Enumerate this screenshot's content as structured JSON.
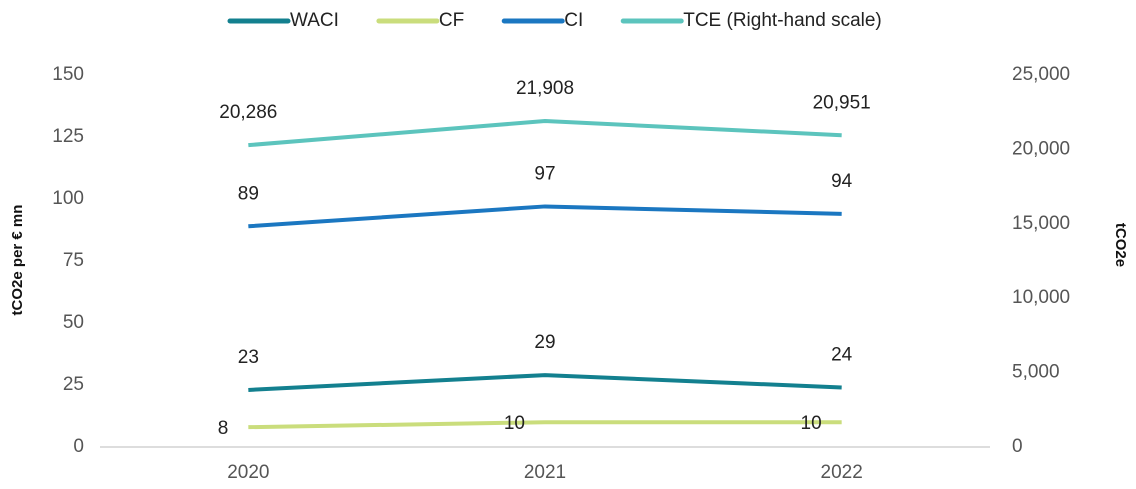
{
  "chart_data": {
    "type": "line",
    "categories": [
      "2020",
      "2021",
      "2022"
    ],
    "series": [
      {
        "name": "WACI",
        "color": "#13808f",
        "values": [
          23,
          29,
          24
        ]
      },
      {
        "name": "CF",
        "color": "#cadd7c",
        "values": [
          8,
          10,
          10
        ]
      },
      {
        "name": "CI",
        "color": "#1b77c1",
        "values": [
          89,
          97,
          94
        ]
      },
      {
        "name": "TCE (Right-hand scale)",
        "color": "#5cc4bd",
        "axis": "y2",
        "values": [
          20286,
          21908,
          20951
        ],
        "value_labels": [
          "20,286",
          "21,908",
          "20,951"
        ]
      }
    ],
    "y_label": "tCO2e per € mn",
    "y2_label": "tCO2e",
    "ylim": [
      0,
      150
    ],
    "yticks": [
      0,
      25,
      50,
      75,
      100,
      125,
      150
    ],
    "y2lim": [
      0,
      25000
    ],
    "y2ticks": [
      0,
      {
        "value": 5000,
        "label": "5,000"
      },
      {
        "value": 10000,
        "label": "10,000"
      },
      {
        "value": 15000,
        "label": "15,000"
      },
      {
        "value": 20000,
        "label": "20,000"
      },
      {
        "value": 25000,
        "label": "25,000"
      }
    ],
    "legend": "top"
  }
}
